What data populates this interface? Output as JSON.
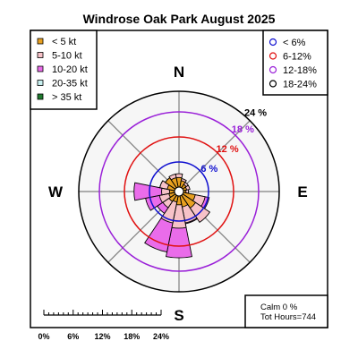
{
  "chart_data": {
    "type": "windrose",
    "title": "Windrose  Oak Park August 2025",
    "compass": {
      "n": "N",
      "e": "E",
      "s": "S",
      "w": "W"
    },
    "directions": [
      0,
      22.5,
      45,
      67.5,
      90,
      112.5,
      135,
      157.5,
      180,
      202.5,
      225,
      247.5,
      270,
      292.5,
      315,
      337.5
    ],
    "ring_values": [
      6,
      12,
      18,
      24
    ],
    "rings": [
      {
        "label": "6 %",
        "color": "#1010d0"
      },
      {
        "label": "12 %",
        "color": "#e01010"
      },
      {
        "label": "18 %",
        "color": "#9a20d8"
      },
      {
        "label": "24 %",
        "color": "#000000"
      }
    ],
    "speed_bins": [
      {
        "label": "< 5  kt",
        "color": "#e8a020"
      },
      {
        "label": "5-10 kt",
        "color": "#f7c2c8"
      },
      {
        "label": "10-20 kt",
        "color": "#ea6cea"
      },
      {
        "label": "20-35 kt",
        "color": "#c8f0f0"
      },
      {
        "label": "> 35 kt",
        "color": "#1f7a2e"
      }
    ],
    "freq_legend": [
      {
        "label": "< 6%",
        "color": "#1010d0"
      },
      {
        "label": "6-12%",
        "color": "#e01010"
      },
      {
        "label": "12-18%",
        "color": "#9a20d8"
      },
      {
        "label": "18-24%",
        "color": "#000000"
      }
    ],
    "cumulative_percent": [
      [
        2.3,
        3.2,
        0,
        0,
        0
      ],
      [
        1.6,
        2.1,
        0,
        0,
        0
      ],
      [
        1.0,
        1.6,
        0,
        0,
        0
      ],
      [
        0.8,
        1.6,
        0,
        0,
        0
      ],
      [
        0.6,
        1.2,
        0,
        0,
        0
      ],
      [
        2.9,
        5.3,
        6.3,
        0,
        0
      ],
      [
        3.7,
        7.8,
        0,
        0,
        0
      ],
      [
        2.7,
        6.6,
        6.8,
        0,
        0
      ],
      [
        2.1,
        7.7,
        14.8,
        0,
        0
      ],
      [
        1.5,
        6.6,
        13.7,
        0,
        0
      ],
      [
        1.8,
        3.6,
        5.2,
        0,
        0
      ],
      [
        1.4,
        3.7,
        7.1,
        0,
        0
      ],
      [
        1.2,
        3.1,
        9.7,
        0,
        0
      ],
      [
        1.8,
        3.6,
        3.6,
        0,
        0
      ],
      [
        2.9,
        2.9,
        2.9,
        0,
        0
      ],
      [
        2.3,
        3.2,
        0,
        0,
        0
      ]
    ],
    "scale_labels": [
      "0%",
      "6%",
      "12%",
      "18%",
      "24%"
    ],
    "calm": "Calm 0 %",
    "total_hours": "Tot Hours=744",
    "grid": true
  }
}
